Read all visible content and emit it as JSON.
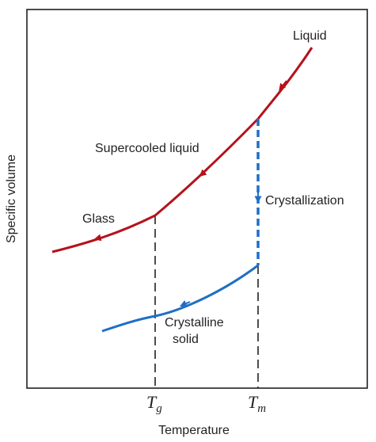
{
  "chart_data": {
    "type": "line",
    "title": "",
    "xlabel": "Temperature",
    "ylabel": "Specific volume",
    "grid": false,
    "ticks": [
      {
        "id": "tg",
        "main": "T",
        "sub": "g"
      },
      {
        "id": "tm",
        "main": "T",
        "sub": "m"
      }
    ],
    "curves": [
      {
        "id": "liquid",
        "label": "Liquid",
        "color": "#b5121b"
      },
      {
        "id": "supercooled",
        "label": "Supercooled liquid",
        "color": "#b5121b"
      },
      {
        "id": "glass",
        "label": "Glass",
        "color": "#b5121b"
      },
      {
        "id": "crystallization",
        "label": "Crystallization",
        "color": "#1f6fc5",
        "style": "dashed"
      },
      {
        "id": "crystalline",
        "label_lines": [
          "Crystalline",
          "solid"
        ],
        "color": "#1f6fc5"
      }
    ]
  }
}
